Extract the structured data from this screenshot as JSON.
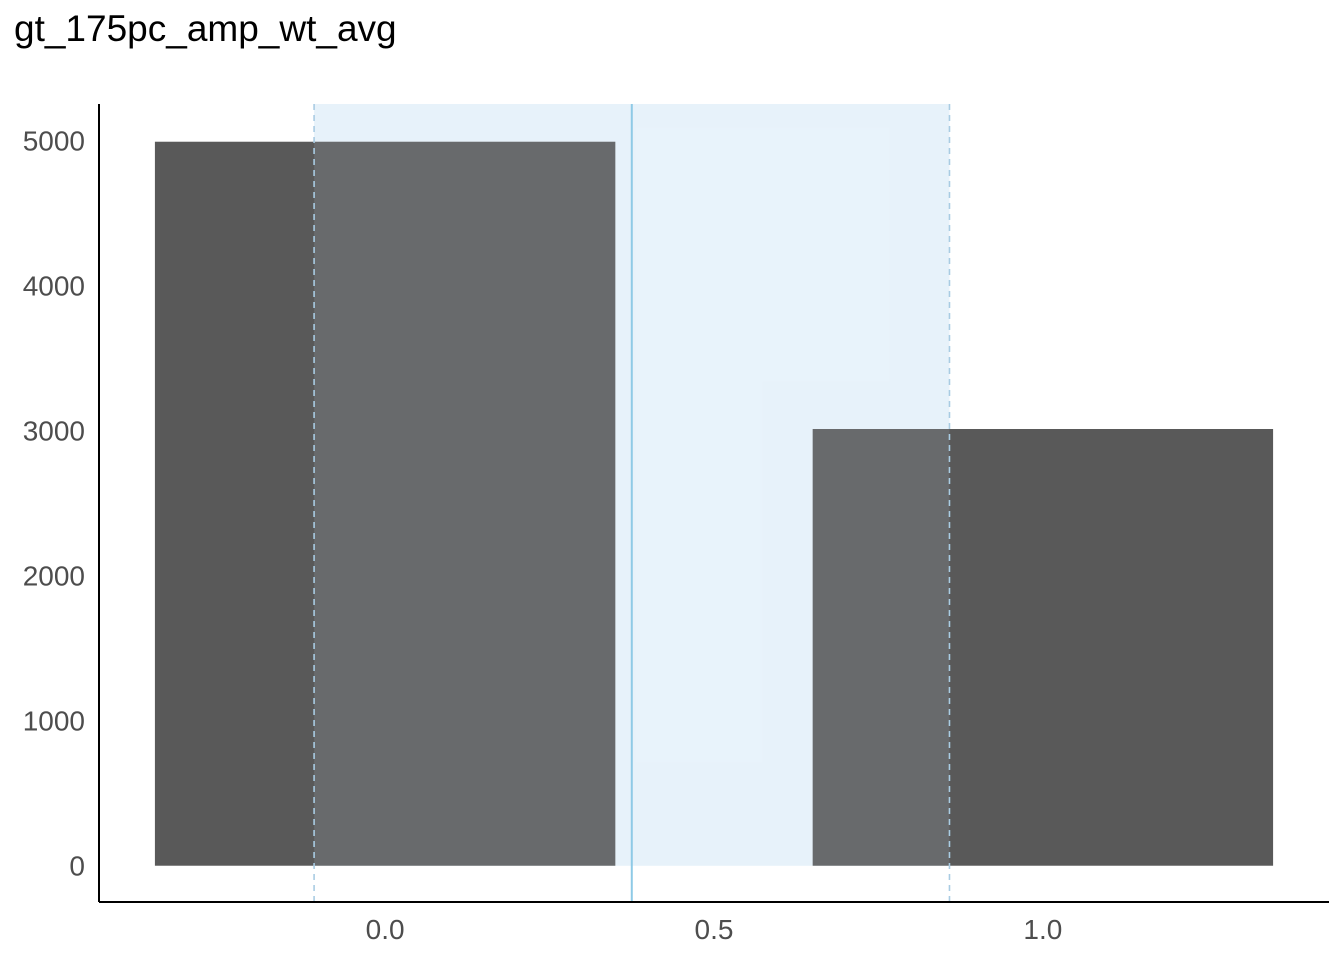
{
  "chart_data": {
    "type": "bar",
    "title": "gt_175pc_amp_wt_avg",
    "xlabel": "",
    "ylabel": "",
    "bins": [
      {
        "x0": -0.35,
        "x1": 0.35,
        "value": 4990
      },
      {
        "x0": 0.65,
        "x1": 1.35,
        "value": 3010
      }
    ],
    "xlim": [
      -0.435,
      1.435
    ],
    "ylim": [
      -250,
      5250
    ],
    "x_ticks": [
      {
        "value": 0.0,
        "label": "0.0"
      },
      {
        "value": 0.5,
        "label": "0.5"
      },
      {
        "value": 1.0,
        "label": "1.0"
      }
    ],
    "y_ticks": [
      {
        "value": 0,
        "label": "0"
      },
      {
        "value": 1000,
        "label": "1000"
      },
      {
        "value": 2000,
        "label": "2000"
      },
      {
        "value": 3000,
        "label": "3000"
      },
      {
        "value": 4000,
        "label": "4000"
      },
      {
        "value": 5000,
        "label": "5000"
      }
    ],
    "reference_band": {
      "x0": -0.108,
      "x1": 0.858
    },
    "reference_line": {
      "x": 0.375
    },
    "grid": false,
    "colors": {
      "bar": "#595959",
      "band_fill": "#d6e9f8",
      "band_edge": "#a9cce3",
      "line": "#8ecae6",
      "axis": "#000000",
      "tick_label": "#4d4d4d"
    }
  }
}
